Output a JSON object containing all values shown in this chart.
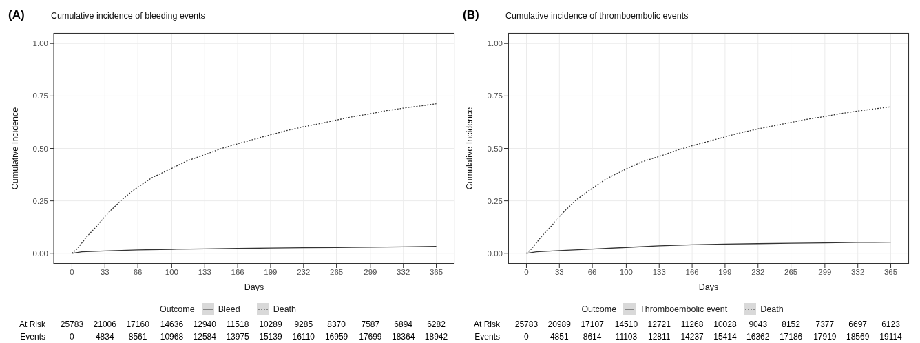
{
  "chart_data": [
    {
      "type": "line",
      "title": "Cumulative incidence of bleeding events",
      "xlabel": "Days",
      "ylabel": "Cumulative Incidence",
      "legend_title": "Outcome",
      "legend": "bottom",
      "grid": true,
      "marker": "none",
      "xlim": [
        -18.25,
        383.25
      ],
      "xticks": [
        0,
        33,
        66,
        100,
        133,
        166,
        199,
        232,
        265,
        299,
        332,
        365
      ],
      "ylim": [
        -0.05,
        1.05
      ],
      "yticks": [
        {
          "value": 0,
          "label": "0.00"
        },
        {
          "value": 0.25,
          "label": "0.25"
        },
        {
          "value": 0.5,
          "label": "0.50"
        },
        {
          "value": 0.75,
          "label": "0.75"
        },
        {
          "value": 1,
          "label": "1.00"
        }
      ],
      "series": [
        {
          "name": "Bleed",
          "color": "#333333",
          "line_style": "solid",
          "x": [
            0,
            10,
            33,
            66,
            100,
            133,
            166,
            199,
            232,
            265,
            299,
            332,
            365
          ],
          "values": [
            0,
            0.007,
            0.011,
            0.016,
            0.019,
            0.021,
            0.023,
            0.025,
            0.027,
            0.028,
            0.029,
            0.031,
            0.033
          ]
        },
        {
          "name": "Death",
          "color": "#333333",
          "line_style": "dotted",
          "x": [
            0,
            5,
            10,
            15,
            20,
            25,
            33,
            40,
            50,
            60,
            66,
            80,
            100,
            115,
            133,
            150,
            166,
            185,
            199,
            215,
            232,
            250,
            265,
            280,
            299,
            315,
            332,
            350,
            365
          ],
          "values": [
            0,
            0.02,
            0.05,
            0.08,
            0.105,
            0.13,
            0.175,
            0.21,
            0.255,
            0.295,
            0.315,
            0.36,
            0.405,
            0.44,
            0.47,
            0.5,
            0.522,
            0.547,
            0.565,
            0.585,
            0.603,
            0.62,
            0.635,
            0.65,
            0.665,
            0.68,
            0.692,
            0.703,
            0.713
          ]
        }
      ],
      "annotations": [
        "(A)",
        "At Risk",
        "25783",
        "21006",
        "17160",
        "14636",
        "12940",
        "11518",
        "10289",
        "9285",
        "8370",
        "7587",
        "6894",
        "6282",
        "Events",
        "0",
        "4834",
        "8561",
        "10968",
        "12584",
        "13975",
        "15139",
        "16110",
        "16959",
        "17699",
        "18364",
        "18942"
      ]
    },
    {
      "type": "line",
      "title": "Cumulative incidence of thromboembolic events",
      "xlabel": "Days",
      "ylabel": "Cumulative Incidence",
      "legend_title": "Outcome",
      "legend": "bottom",
      "grid": true,
      "marker": "none",
      "xlim": [
        -18.25,
        383.25
      ],
      "xticks": [
        0,
        33,
        66,
        100,
        133,
        166,
        199,
        232,
        265,
        299,
        332,
        365
      ],
      "ylim": [
        -0.05,
        1.05
      ],
      "yticks": [
        {
          "value": 0,
          "label": "0.00"
        },
        {
          "value": 0.25,
          "label": "0.25"
        },
        {
          "value": 0.5,
          "label": "0.50"
        },
        {
          "value": 0.75,
          "label": "0.75"
        },
        {
          "value": 1,
          "label": "1.00"
        }
      ],
      "series": [
        {
          "name": "Thromboembolic event",
          "color": "#333333",
          "line_style": "solid",
          "x": [
            0,
            10,
            33,
            66,
            100,
            133,
            166,
            199,
            232,
            265,
            299,
            332,
            365
          ],
          "values": [
            0,
            0.007,
            0.013,
            0.02,
            0.028,
            0.036,
            0.041,
            0.044,
            0.046,
            0.048,
            0.05,
            0.052,
            0.053
          ]
        },
        {
          "name": "Death",
          "color": "#333333",
          "line_style": "dotted",
          "x": [
            0,
            5,
            10,
            15,
            20,
            25,
            33,
            40,
            50,
            60,
            66,
            80,
            100,
            115,
            133,
            150,
            166,
            185,
            199,
            215,
            232,
            250,
            265,
            280,
            299,
            315,
            332,
            350,
            365
          ],
          "values": [
            0,
            0.02,
            0.05,
            0.08,
            0.105,
            0.13,
            0.175,
            0.21,
            0.255,
            0.29,
            0.31,
            0.355,
            0.402,
            0.435,
            0.462,
            0.49,
            0.513,
            0.537,
            0.555,
            0.575,
            0.593,
            0.61,
            0.624,
            0.638,
            0.652,
            0.666,
            0.678,
            0.689,
            0.698
          ]
        }
      ],
      "annotations": [
        "(B)",
        "At Risk",
        "25783",
        "20989",
        "17107",
        "14510",
        "12721",
        "11268",
        "10028",
        "9043",
        "8152",
        "7377",
        "6697",
        "6123",
        "Events",
        "0",
        "4851",
        "8614",
        "11103",
        "12811",
        "14237",
        "15414",
        "16362",
        "17186",
        "17919",
        "18569",
        "19114"
      ]
    }
  ]
}
